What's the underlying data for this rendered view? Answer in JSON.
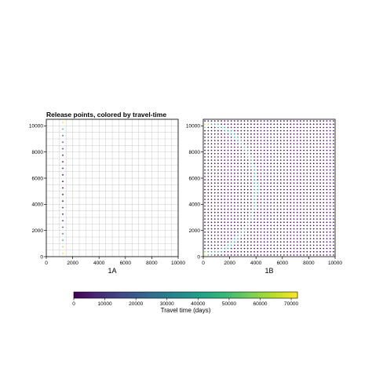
{
  "chart_data": [
    {
      "type": "scatter",
      "title": "Release points, colored by travel-time",
      "xlabel": "1A",
      "ylabel": "",
      "xlim": [
        0,
        10000
      ],
      "ylim": [
        0,
        10500
      ],
      "xticks": [
        0,
        2000,
        4000,
        6000,
        8000,
        10000
      ],
      "yticks": [
        0,
        2000,
        4000,
        6000,
        8000,
        10000
      ],
      "xtick_labels": [
        "0",
        "2000",
        "4000",
        "6000",
        "8000",
        "10000"
      ],
      "ytick_labels": [
        "0",
        "2000",
        "4000",
        "6000",
        "8000",
        "10000"
      ],
      "grid": true,
      "points": {
        "x": 1250,
        "y_start": 250,
        "y_step": 500,
        "count": 21,
        "travel_time_days": [
          70000,
          62000,
          45000,
          30000,
          18000,
          10000,
          6000,
          4000,
          3000,
          2000,
          1000,
          1000,
          2000,
          3000,
          4000,
          6000,
          10000,
          18000,
          30000,
          45000,
          70000
        ]
      }
    },
    {
      "type": "scatter",
      "title": "",
      "xlabel": "1B",
      "ylabel": "",
      "xlim": [
        0,
        10000
      ],
      "ylim": [
        0,
        10500
      ],
      "xticks": [
        0,
        2000,
        4000,
        6000,
        8000,
        10000
      ],
      "yticks": [
        0,
        2000,
        4000,
        6000,
        8000,
        10000
      ],
      "xtick_labels": [
        "0",
        "2000",
        "4000",
        "6000",
        "8000",
        "10000"
      ],
      "ytick_labels": [
        "0",
        "2000",
        "4000",
        "6000",
        "8000",
        "10000"
      ],
      "grid": false,
      "points": {
        "x_start": 125,
        "x_step": 250,
        "y_start": 125,
        "y_step": 250,
        "nx": 40,
        "ny": 42,
        "base_travel_time_days": 2000,
        "highlights": [
          {
            "x": 250,
            "y": 10250,
            "travel_time_days": 70000
          },
          {
            "x": 500,
            "y": 10250,
            "travel_time_days": 62000
          },
          {
            "x": 250,
            "y": 10000,
            "travel_time_days": 55000
          },
          {
            "x": 250,
            "y": 250,
            "travel_time_days": 70000
          },
          {
            "x": 250,
            "y": 500,
            "travel_time_days": 58000
          },
          {
            "x": 500,
            "y": 250,
            "travel_time_days": 48000
          }
        ],
        "arc_travel_time_days": 38000
      }
    }
  ],
  "colorbar": {
    "label": "Travel time (days)",
    "min": 0,
    "max": 72000,
    "ticks": [
      0,
      10000,
      20000,
      30000,
      40000,
      50000,
      60000,
      70000
    ],
    "tick_labels": [
      "0",
      "10000",
      "20000",
      "30000",
      "40000",
      "50000",
      "60000",
      "70000"
    ],
    "colormap": "viridis",
    "colors": [
      "#440154",
      "#482878",
      "#3e4989",
      "#31688e",
      "#26828e",
      "#1f9e89",
      "#35b779",
      "#6ece58",
      "#b5de2b",
      "#fde725"
    ]
  }
}
